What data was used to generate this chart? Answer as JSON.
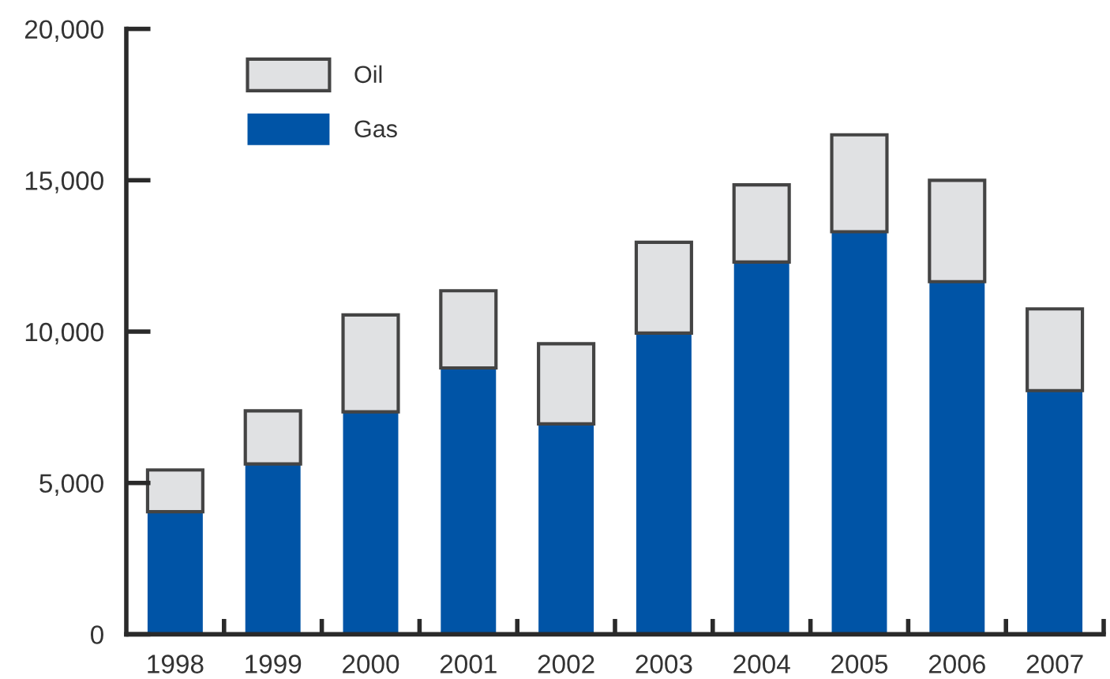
{
  "chart_data": {
    "type": "bar",
    "stacked": true,
    "categories": [
      "1998",
      "1999",
      "2000",
      "2001",
      "2002",
      "2003",
      "2004",
      "2005",
      "2006",
      "2007"
    ],
    "series": [
      {
        "name": "Gas",
        "color": "#0054a6",
        "values": [
          4050,
          5630,
          7350,
          8800,
          6950,
          9950,
          12300,
          13300,
          11650,
          8050
        ]
      },
      {
        "name": "Oil",
        "color": "#e0e1e3",
        "values": [
          1380,
          1750,
          3200,
          2550,
          2650,
          3000,
          2550,
          3200,
          3350,
          2700
        ]
      }
    ],
    "ylim": [
      0,
      20000
    ],
    "yticks": [
      0,
      {
        "value": 5000,
        "label": "5,000"
      },
      {
        "value": 10000,
        "label": "10,000"
      },
      {
        "value": 15000,
        "label": "15,000"
      },
      {
        "value": 20000,
        "label": "20,000"
      }
    ],
    "legend": "top left",
    "grid": false
  }
}
